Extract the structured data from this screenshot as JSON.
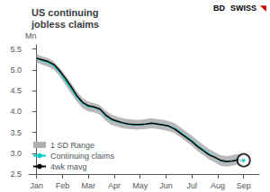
{
  "chart_data": {
    "type": "line",
    "title": "US continuing\njobless claims",
    "y_label": "Mn",
    "annotations": [
      {
        "text": "BD"
      },
      {
        "text": "SWISS"
      },
      {
        "text": "◥",
        "color": "#cc0000"
      }
    ],
    "background": "#ffffff",
    "x": [
      0,
      0.2222222222222222,
      0.4444444444444444,
      0.6666666666666666,
      0.8888888888888888,
      1.1111111111111112,
      1.3333333333333333,
      1.5555555555555556,
      1.7777777777777777,
      2,
      2.2222222222222223,
      2.4444444444444446,
      2.6666666666666665,
      2.888888888888889,
      3.111111111111111,
      3.3333333333333335,
      3.5555555555555554,
      3.7777777777777777,
      4,
      4.222222222222222,
      4.444444444444445,
      4.666666666666667,
      4.888888888888889,
      5.111111111111111,
      5.333333333333333,
      5.555555555555555,
      5.777777777777778,
      6,
      6.222222222222222,
      6.444444444444445,
      6.666666666666667,
      6.888888888888889,
      7.111111111111111,
      7.333333333333333,
      7.555555555555555,
      7.777777777777778,
      8
    ],
    "series": [
      {
        "name": "1 SD Range",
        "type": "band",
        "color": "#b0b0b0",
        "upper": [
          5.38,
          5.32,
          5.28,
          5.2,
          5.05,
          4.87,
          4.68,
          4.48,
          4.32,
          4.24,
          4.2,
          4.15,
          4.02,
          3.93,
          3.88,
          3.84,
          3.82,
          3.8,
          3.8,
          3.82,
          3.84,
          3.82,
          3.8,
          3.77,
          3.72,
          3.62,
          3.52,
          3.42,
          3.3,
          3.2,
          3.1,
          3.02,
          2.95,
          2.93,
          2.95,
          2.98,
          2.95
        ],
        "lower": [
          5.18,
          5.12,
          5.08,
          5.0,
          4.85,
          4.65,
          4.44,
          4.24,
          4.08,
          4.0,
          3.98,
          3.93,
          3.78,
          3.68,
          3.64,
          3.6,
          3.58,
          3.57,
          3.57,
          3.58,
          3.6,
          3.58,
          3.56,
          3.53,
          3.48,
          3.38,
          3.28,
          3.18,
          3.05,
          2.95,
          2.85,
          2.78,
          2.7,
          2.68,
          2.7,
          2.73,
          2.7
        ]
      },
      {
        "name": "Continuing claims",
        "type": "line",
        "color": "#00cccc",
        "values": [
          5.28,
          5.22,
          5.18,
          5.1,
          4.95,
          4.75,
          4.55,
          4.35,
          4.2,
          4.12,
          4.1,
          4.05,
          3.9,
          3.8,
          3.76,
          3.72,
          3.7,
          3.68,
          3.68,
          3.7,
          3.72,
          3.7,
          3.68,
          3.65,
          3.6,
          3.5,
          3.4,
          3.3,
          3.18,
          3.08,
          2.98,
          2.9,
          2.82,
          2.8,
          2.82,
          2.85,
          2.83
        ]
      },
      {
        "name": "4wk mavg",
        "type": "line",
        "color": "#000000",
        "values": [
          5.28,
          5.24,
          5.2,
          5.13,
          4.98,
          4.8,
          4.6,
          4.38,
          4.22,
          4.14,
          4.11,
          4.06,
          3.92,
          3.82,
          3.77,
          3.73,
          3.7,
          3.69,
          3.69,
          3.7,
          3.72,
          3.7,
          3.68,
          3.65,
          3.58,
          3.48,
          3.38,
          3.28,
          3.16,
          3.06,
          2.96,
          2.9,
          2.83,
          2.8,
          2.81,
          2.84,
          2.82
        ]
      }
    ],
    "highlight": {
      "x": 8,
      "y": 2.83,
      "marker": "circle",
      "color": "#00cccc"
    },
    "xlim": [
      -0.3,
      8.6
    ],
    "xticks": [
      {
        "value": 0,
        "label": "Jan"
      },
      {
        "value": 1,
        "label": "Feb"
      },
      {
        "value": 2,
        "label": "Mar"
      },
      {
        "value": 3,
        "label": "Apr"
      },
      {
        "value": 4,
        "label": "May"
      },
      {
        "value": 5,
        "label": "Jun"
      },
      {
        "value": 6,
        "label": "Jul"
      },
      {
        "value": 7,
        "label": "Aug"
      },
      {
        "value": 8,
        "label": "Sep"
      }
    ],
    "ylim": [
      2.5,
      5.6
    ],
    "yticks": [
      2.5,
      {
        "value": 3.0,
        "label": "3.0"
      },
      3.5,
      {
        "value": 4.0,
        "label": "4.0"
      },
      4.5,
      {
        "value": 5.0,
        "label": "5.0"
      },
      5.5
    ],
    "grid": false,
    "legend": "lower left"
  }
}
